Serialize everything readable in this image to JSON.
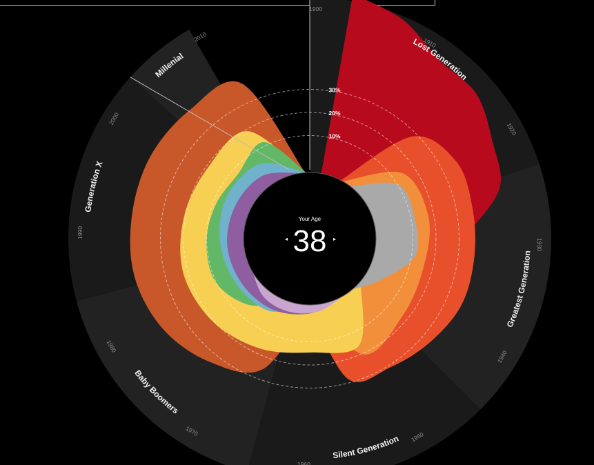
{
  "colors": {
    "background": "#000000",
    "sector_dark": "#1a1a1a",
    "sector_light": "#222222",
    "rings": [
      "#b70a1c",
      "#e8502b",
      "#c8582a",
      "#f28f3b",
      "#f7cf52",
      "#a9a9a9",
      "#62b866",
      "#70b2cc",
      "#8f5ea0",
      "#c9a6cf",
      "#999999"
    ]
  },
  "center": {
    "label": "Your Age",
    "value": "38",
    "left_arrow": "◂",
    "right_arrow": "▸"
  },
  "chart_data": {
    "type": "radial-area",
    "title": "",
    "x_unit": "birth year",
    "radial_ticks": [
      "10%",
      "20%",
      "30%"
    ],
    "year_ticks": [
      "1900",
      "1910",
      "1920",
      "1930",
      "1940",
      "1950",
      "1960",
      "1970",
      "1980",
      "1990",
      "2000",
      "2010"
    ],
    "generations": [
      {
        "name": "Lost Generation",
        "start": 1900,
        "end": 1924
      },
      {
        "name": "Greatest Generation",
        "start": 1924,
        "end": 1945
      },
      {
        "name": "Silent Generation",
        "start": 1945,
        "end": 1965
      },
      {
        "name": "Baby Boomers",
        "start": 1965,
        "end": 1985
      },
      {
        "name": "Generation X",
        "start": 1985,
        "end": 2004
      },
      {
        "name": "Millenial",
        "start": 2004,
        "end": 2010
      }
    ]
  }
}
